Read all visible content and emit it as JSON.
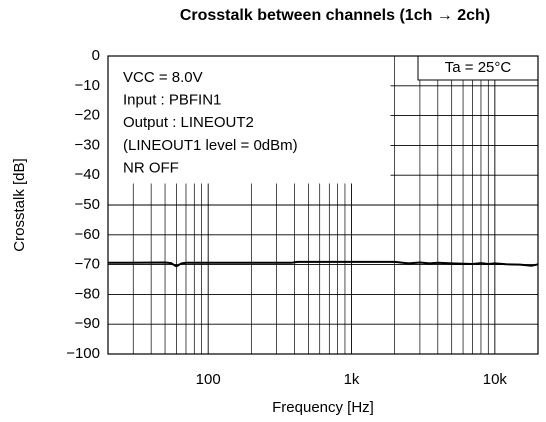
{
  "chart_data": {
    "type": "line",
    "title": "Crosstalk between channels (1ch → 2ch)",
    "x_label": "Frequency [Hz]",
    "y_label": "Crosstalk [dB]",
    "annotations": [
      "VCC = 8.0V",
      "Input : PBFIN1",
      "Output : LINEOUT2",
      "(LINEOUT1 level = 0dBm)",
      "NR OFF"
    ],
    "condition": "Ta = 25°C",
    "x_scale": "log",
    "grid": true,
    "xlim": [
      20,
      20000
    ],
    "ylim": [
      -100,
      0
    ],
    "xticks": [
      100,
      {
        "value": 1000,
        "label": "1k"
      },
      {
        "value": 10000,
        "label": "10k"
      }
    ],
    "xminorticks": [
      20,
      30,
      40,
      50,
      60,
      70,
      80,
      90,
      200,
      300,
      400,
      500,
      600,
      700,
      800,
      900,
      2000,
      3000,
      4000,
      5000,
      6000,
      7000,
      8000,
      9000
    ],
    "yticks": [
      0,
      {
        "value": -10,
        "label": "−10"
      },
      {
        "value": -20,
        "label": "−20"
      },
      {
        "value": -30,
        "label": "−30"
      },
      {
        "value": -40,
        "label": "−40"
      },
      {
        "value": -50,
        "label": "−50"
      },
      {
        "value": -60,
        "label": "−60"
      },
      {
        "value": -70,
        "label": "−70"
      },
      {
        "value": -80,
        "label": "−80"
      },
      {
        "value": -90,
        "label": "−90"
      },
      {
        "value": -100,
        "label": "−100"
      }
    ],
    "series": [
      {
        "color": "#000000",
        "x": [
          20,
          50,
          55,
          60,
          65,
          70,
          100,
          200,
          380,
          420,
          1000,
          2000,
          2500,
          3000,
          3500,
          4000,
          5000,
          7000,
          8000,
          9000,
          10000,
          12000,
          15000,
          18000,
          20000
        ],
        "values": [
          -69.4,
          -69.3,
          -69.5,
          -70.6,
          -69.6,
          -69.4,
          -69.4,
          -69.4,
          -69.4,
          -69.1,
          -69.1,
          -69.1,
          -69.6,
          -69.3,
          -69.6,
          -69.4,
          -69.6,
          -69.8,
          -69.5,
          -69.8,
          -69.6,
          -69.9,
          -70.0,
          -70.4,
          -69.9
        ]
      }
    ]
  }
}
